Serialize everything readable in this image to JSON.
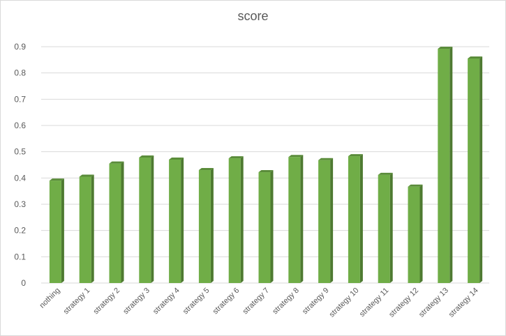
{
  "chart_data": {
    "type": "bar",
    "title": "score",
    "xlabel": "",
    "ylabel": "",
    "ylim": [
      0,
      0.9
    ],
    "yticks": [
      "0",
      "0.1",
      "0.2",
      "0.3",
      "0.4",
      "0.5",
      "0.6",
      "0.7",
      "0.8",
      "0.9"
    ],
    "grid": true,
    "categories": [
      "nothing",
      "strategy 1",
      "strategy 2",
      "strategy 3",
      "strategy 4",
      "strategy 5",
      "strategy 6",
      "strategy 7",
      "strategy 8",
      "strategy 9",
      "strategy 10",
      "strategy 11",
      "strategy 12",
      "strategy 13",
      "strategy 14"
    ],
    "values": [
      0.39,
      0.405,
      0.455,
      0.478,
      0.47,
      0.43,
      0.475,
      0.422,
      0.48,
      0.468,
      0.483,
      0.412,
      0.367,
      0.892,
      0.855
    ],
    "colors": {
      "bar_front": "#70ad47",
      "bar_side": "#4e7a31",
      "bar_top": "#5a8c3a",
      "grid": "#d9d9d9",
      "text": "#595959"
    }
  }
}
